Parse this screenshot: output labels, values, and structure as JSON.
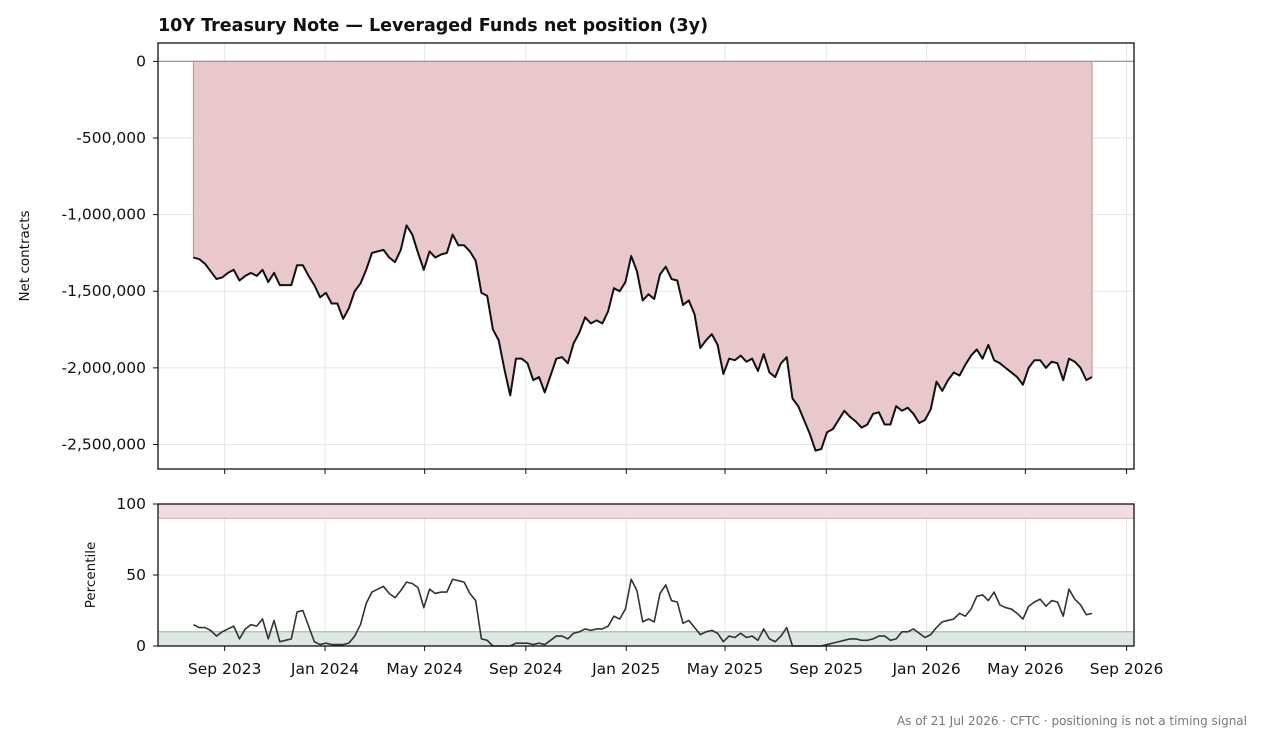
{
  "footer": "As of 21 Jul 2026 · CFTC · positioning is not a timing signal",
  "chart_data": [
    {
      "type": "area",
      "title": "10Y Treasury Note — Leveraged Funds net position (3y)",
      "xlabel": "",
      "ylabel": "Net contracts",
      "ylim": [
        -2660000,
        120000
      ],
      "yticks": [
        0,
        -500000,
        -1000000,
        -1500000,
        -2000000,
        -2500000
      ],
      "ytick_labels": [
        "0",
        "-500,000",
        "-1,000,000",
        "-1,500,000",
        "-2,000,000",
        "-2,500,000"
      ],
      "xlim": [
        "2023-06-12",
        "2026-09-10"
      ],
      "grid": true,
      "colors": {
        "line": "#111111",
        "fill": "#e8c8cb",
        "fill_edge": "#c98a90",
        "zero_line": "#999999"
      },
      "series": [
        {
          "x": [
            "2023-07-25",
            "2023-08-01",
            "2023-08-08",
            "2023-08-15",
            "2023-08-22",
            "2023-08-29",
            "2023-09-05",
            "2023-09-12",
            "2023-09-19",
            "2023-09-26",
            "2023-10-03",
            "2023-10-10",
            "2023-10-17",
            "2023-10-24",
            "2023-10-31",
            "2023-11-07",
            "2023-11-14",
            "2023-11-21",
            "2023-11-28",
            "2023-12-05",
            "2023-12-12",
            "2023-12-19",
            "2023-12-26",
            "2024-01-02",
            "2024-01-09",
            "2024-01-16",
            "2024-01-23",
            "2024-01-30",
            "2024-02-06",
            "2024-02-13",
            "2024-02-20",
            "2024-02-27",
            "2024-03-05",
            "2024-03-12",
            "2024-03-19",
            "2024-03-26",
            "2024-04-02",
            "2024-04-09",
            "2024-04-16",
            "2024-04-23",
            "2024-04-30",
            "2024-05-07",
            "2024-05-14",
            "2024-05-21",
            "2024-05-28",
            "2024-06-04",
            "2024-06-11",
            "2024-06-18",
            "2024-06-25",
            "2024-07-02",
            "2024-07-09",
            "2024-07-16",
            "2024-07-23",
            "2024-07-30",
            "2024-08-06",
            "2024-08-13",
            "2024-08-20",
            "2024-08-27",
            "2024-09-03",
            "2024-09-10",
            "2024-09-17",
            "2024-09-24",
            "2024-10-01",
            "2024-10-08",
            "2024-10-15",
            "2024-10-22",
            "2024-10-29",
            "2024-11-05",
            "2024-11-12",
            "2024-11-19",
            "2024-11-26",
            "2024-12-03",
            "2024-12-10",
            "2024-12-17",
            "2024-12-24",
            "2024-12-31",
            "2025-01-07",
            "2025-01-14",
            "2025-01-21",
            "2025-01-28",
            "2025-02-04",
            "2025-02-11",
            "2025-02-18",
            "2025-02-25",
            "2025-03-04",
            "2025-03-11",
            "2025-03-18",
            "2025-03-25",
            "2025-04-01",
            "2025-04-08",
            "2025-04-15",
            "2025-04-22",
            "2025-04-29",
            "2025-05-06",
            "2025-05-13",
            "2025-05-20",
            "2025-05-27",
            "2025-06-03",
            "2025-06-10",
            "2025-06-17",
            "2025-06-24",
            "2025-07-01",
            "2025-07-08",
            "2025-07-15",
            "2025-07-22",
            "2025-07-29",
            "2025-08-05",
            "2025-08-12",
            "2025-08-19",
            "2025-08-26",
            "2025-09-02",
            "2025-09-09",
            "2025-09-16",
            "2025-09-23",
            "2025-09-30",
            "2025-10-07",
            "2025-10-14",
            "2025-10-21",
            "2025-10-28",
            "2025-11-04",
            "2025-11-11",
            "2025-11-18",
            "2025-11-25",
            "2025-12-02",
            "2025-12-09",
            "2025-12-16",
            "2025-12-23",
            "2025-12-30",
            "2026-01-06",
            "2026-01-13",
            "2026-01-20",
            "2026-01-27",
            "2026-02-03",
            "2026-02-10",
            "2026-02-17",
            "2026-02-24",
            "2026-03-03",
            "2026-03-10",
            "2026-03-17",
            "2026-03-24",
            "2026-03-31",
            "2026-04-07",
            "2026-04-14",
            "2026-04-21",
            "2026-04-28",
            "2026-05-05",
            "2026-05-12",
            "2026-05-19",
            "2026-05-26",
            "2026-06-02",
            "2026-06-09",
            "2026-06-16",
            "2026-06-23",
            "2026-06-30",
            "2026-07-07",
            "2026-07-14",
            "2026-07-21"
          ],
          "values": [
            -1280000,
            -1290000,
            -1320000,
            -1370000,
            -1420000,
            -1410000,
            -1380000,
            -1360000,
            -1430000,
            -1400000,
            -1380000,
            -1400000,
            -1360000,
            -1440000,
            -1380000,
            -1460000,
            -1460000,
            -1460000,
            -1330000,
            -1330000,
            -1400000,
            -1460000,
            -1540000,
            -1510000,
            -1580000,
            -1580000,
            -1680000,
            -1610000,
            -1500000,
            -1450000,
            -1360000,
            -1250000,
            -1240000,
            -1230000,
            -1280000,
            -1310000,
            -1230000,
            -1070000,
            -1130000,
            -1250000,
            -1360000,
            -1240000,
            -1280000,
            -1260000,
            -1250000,
            -1130000,
            -1200000,
            -1200000,
            -1240000,
            -1300000,
            -1510000,
            -1530000,
            -1750000,
            -1820000,
            -2010000,
            -2180000,
            -1940000,
            -1940000,
            -1970000,
            -2080000,
            -2060000,
            -2160000,
            -2050000,
            -1940000,
            -1930000,
            -1970000,
            -1840000,
            -1770000,
            -1670000,
            -1710000,
            -1690000,
            -1710000,
            -1630000,
            -1480000,
            -1500000,
            -1440000,
            -1270000,
            -1370000,
            -1560000,
            -1520000,
            -1550000,
            -1390000,
            -1340000,
            -1420000,
            -1430000,
            -1590000,
            -1560000,
            -1650000,
            -1870000,
            -1820000,
            -1780000,
            -1850000,
            -2040000,
            -1940000,
            -1950000,
            -1920000,
            -1960000,
            -1940000,
            -2020000,
            -1910000,
            -2030000,
            -2060000,
            -1970000,
            -1930000,
            -2200000,
            -2250000,
            -2340000,
            -2430000,
            -2540000,
            -2530000,
            -2420000,
            -2400000,
            -2340000,
            -2280000,
            -2320000,
            -2350000,
            -2390000,
            -2370000,
            -2300000,
            -2290000,
            -2370000,
            -2370000,
            -2250000,
            -2280000,
            -2260000,
            -2300000,
            -2360000,
            -2340000,
            -2270000,
            -2090000,
            -2150000,
            -2080000,
            -2030000,
            -2050000,
            -1980000,
            -1920000,
            -1880000,
            -1940000,
            -1850000,
            -1950000,
            -1970000,
            -2000000,
            -2030000,
            -2060000,
            -2110000,
            -2000000,
            -1950000,
            -1950000,
            -2000000,
            -1960000,
            -1970000,
            -2080000,
            -1940000,
            -1960000,
            -2000000,
            -2080000,
            -2060000
          ]
        }
      ]
    },
    {
      "type": "line",
      "xlabel": "",
      "ylabel": "Percentile",
      "ylim": [
        0,
        100
      ],
      "yticks": [
        0,
        50,
        100
      ],
      "ytick_labels": [
        "0",
        "50",
        "100"
      ],
      "xlim": [
        "2023-06-12",
        "2026-09-10"
      ],
      "xticks": [
        "2023-09-01",
        "2024-01-01",
        "2024-05-01",
        "2024-09-01",
        "2025-01-01",
        "2025-05-01",
        "2025-09-01",
        "2026-01-01",
        "2026-05-01",
        "2026-09-01"
      ],
      "xtick_labels": [
        "Sep 2023",
        "Jan 2024",
        "May 2024",
        "Sep 2024",
        "Jan 2025",
        "May 2025",
        "Sep 2025",
        "Jan 2026",
        "May 2026",
        "Sep 2026"
      ],
      "bands": [
        {
          "from": 90,
          "to": 100,
          "color": "#f3dde0",
          "edge": "#d9a5ab"
        },
        {
          "from": 0,
          "to": 10,
          "color": "#dbe9e0",
          "edge": "#8fb89d"
        }
      ],
      "grid": true,
      "colors": {
        "line": "#333333"
      },
      "series": [
        {
          "values": [
            15,
            13,
            13,
            11,
            7,
            10,
            12,
            14,
            5,
            12,
            15,
            14,
            19,
            5,
            18,
            3,
            4,
            5,
            24,
            25,
            14,
            3,
            1,
            2,
            1,
            1,
            1,
            2,
            7,
            15,
            30,
            38,
            40,
            42,
            37,
            34,
            39,
            45,
            44,
            41,
            27,
            40,
            37,
            38,
            38,
            47,
            46,
            45,
            37,
            32,
            5,
            4,
            0,
            0,
            0,
            0,
            2,
            2,
            2,
            1,
            2,
            1,
            4,
            7,
            7,
            5,
            9,
            10,
            12,
            11,
            12,
            12,
            14,
            21,
            19,
            26,
            47,
            39,
            17,
            19,
            17,
            37,
            43,
            32,
            31,
            16,
            18,
            13,
            8,
            10,
            11,
            9,
            3,
            7,
            6,
            9,
            6,
            7,
            4,
            12,
            5,
            3,
            7,
            13,
            0,
            0,
            0,
            0,
            0,
            0,
            1,
            2,
            3,
            4,
            5,
            5,
            4,
            4,
            5,
            7,
            7,
            4,
            5,
            10,
            10,
            12,
            9,
            6,
            8,
            13,
            17,
            18,
            19,
            23,
            21,
            26,
            35,
            36,
            32,
            38,
            29,
            27,
            26,
            23,
            19,
            28,
            31,
            33,
            28,
            32,
            31,
            21,
            40,
            33,
            29,
            22,
            23
          ]
        }
      ]
    }
  ]
}
